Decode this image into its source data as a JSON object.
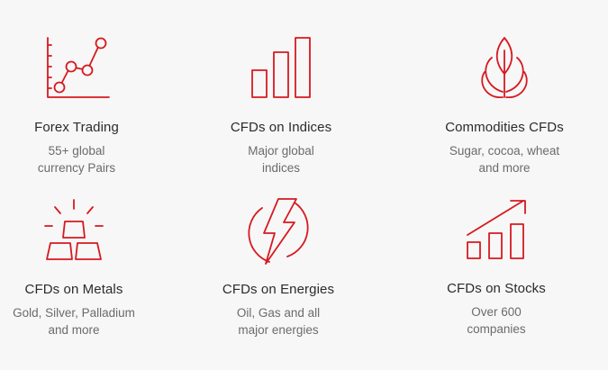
{
  "cards": [
    {
      "title": "Forex Trading",
      "desc_line1": "55+ global",
      "desc_line2": "currency Pairs",
      "icon": "line-chart-icon"
    },
    {
      "title": "CFDs on Indices",
      "desc_line1": "Major global",
      "desc_line2": "indices",
      "icon": "bar-chart-icon"
    },
    {
      "title": "Commodities CFDs",
      "desc_line1": "Sugar, cocoa, wheat",
      "desc_line2": "and more",
      "icon": "leaf-plant-icon"
    },
    {
      "title": "CFDs on Metals",
      "desc_line1": "Gold, Silver, Palladium",
      "desc_line2": "and more",
      "icon": "gold-bars-icon"
    },
    {
      "title": "CFDs on Energies",
      "desc_line1": "Oil, Gas and all",
      "desc_line2": "major energies",
      "icon": "lightning-bolt-icon"
    },
    {
      "title": "CFDs on Stocks",
      "desc_line1": "Over 600",
      "desc_line2": "companies",
      "icon": "stocks-growth-icon"
    }
  ],
  "colors": {
    "accent": "#d71920",
    "background": "#f7f7f7",
    "title": "#2b2b2b",
    "description": "#6b6b6b"
  }
}
